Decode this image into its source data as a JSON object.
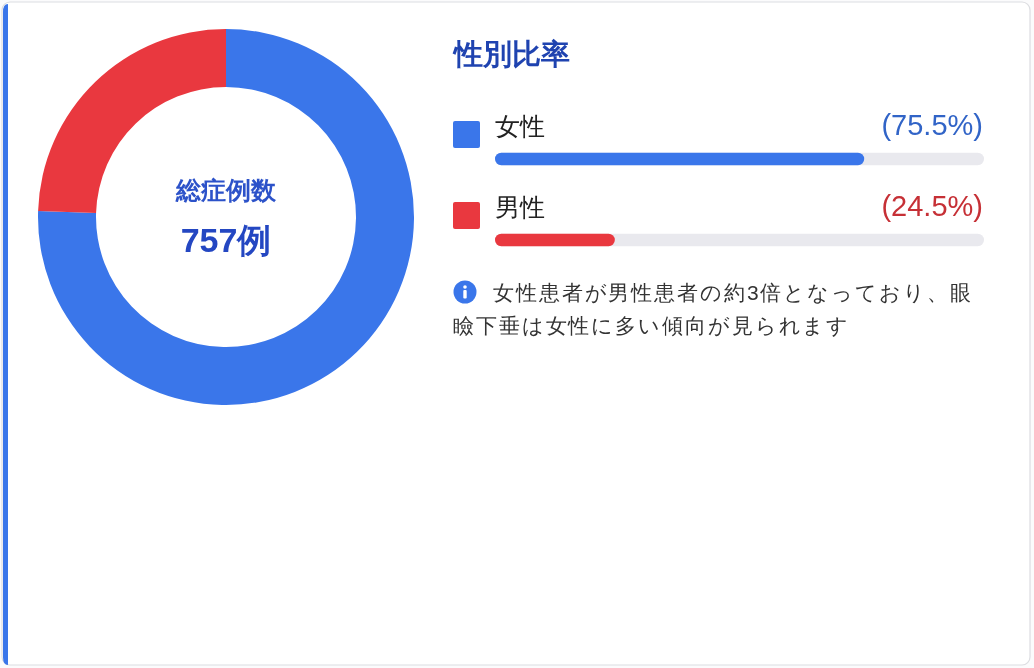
{
  "chart_data": [
    {
      "type": "donut",
      "categories": [
        "女性",
        "男性"
      ],
      "values": [
        75.5,
        24.5
      ],
      "colors": [
        "#3a76ea",
        "#e9383f"
      ],
      "legend": "right",
      "annotations": [
        "総症例数",
        "757例"
      ]
    },
    {
      "type": "bar",
      "orientation": "horizontal",
      "title": "性別比率",
      "categories": [
        null,
        null
      ],
      "values": [
        75.5,
        24.5
      ],
      "colors": [
        "#3a76ea",
        "#e9383f"
      ],
      "value_labels": [
        "(75.5%)",
        "(24.5%)"
      ],
      "xlim": [
        0,
        100
      ],
      "annotations": [
        "女性患者が男性患者の約3倍となっており、眼瞼下垂は女性に多い傾向が見られます"
      ]
    }
  ]
}
